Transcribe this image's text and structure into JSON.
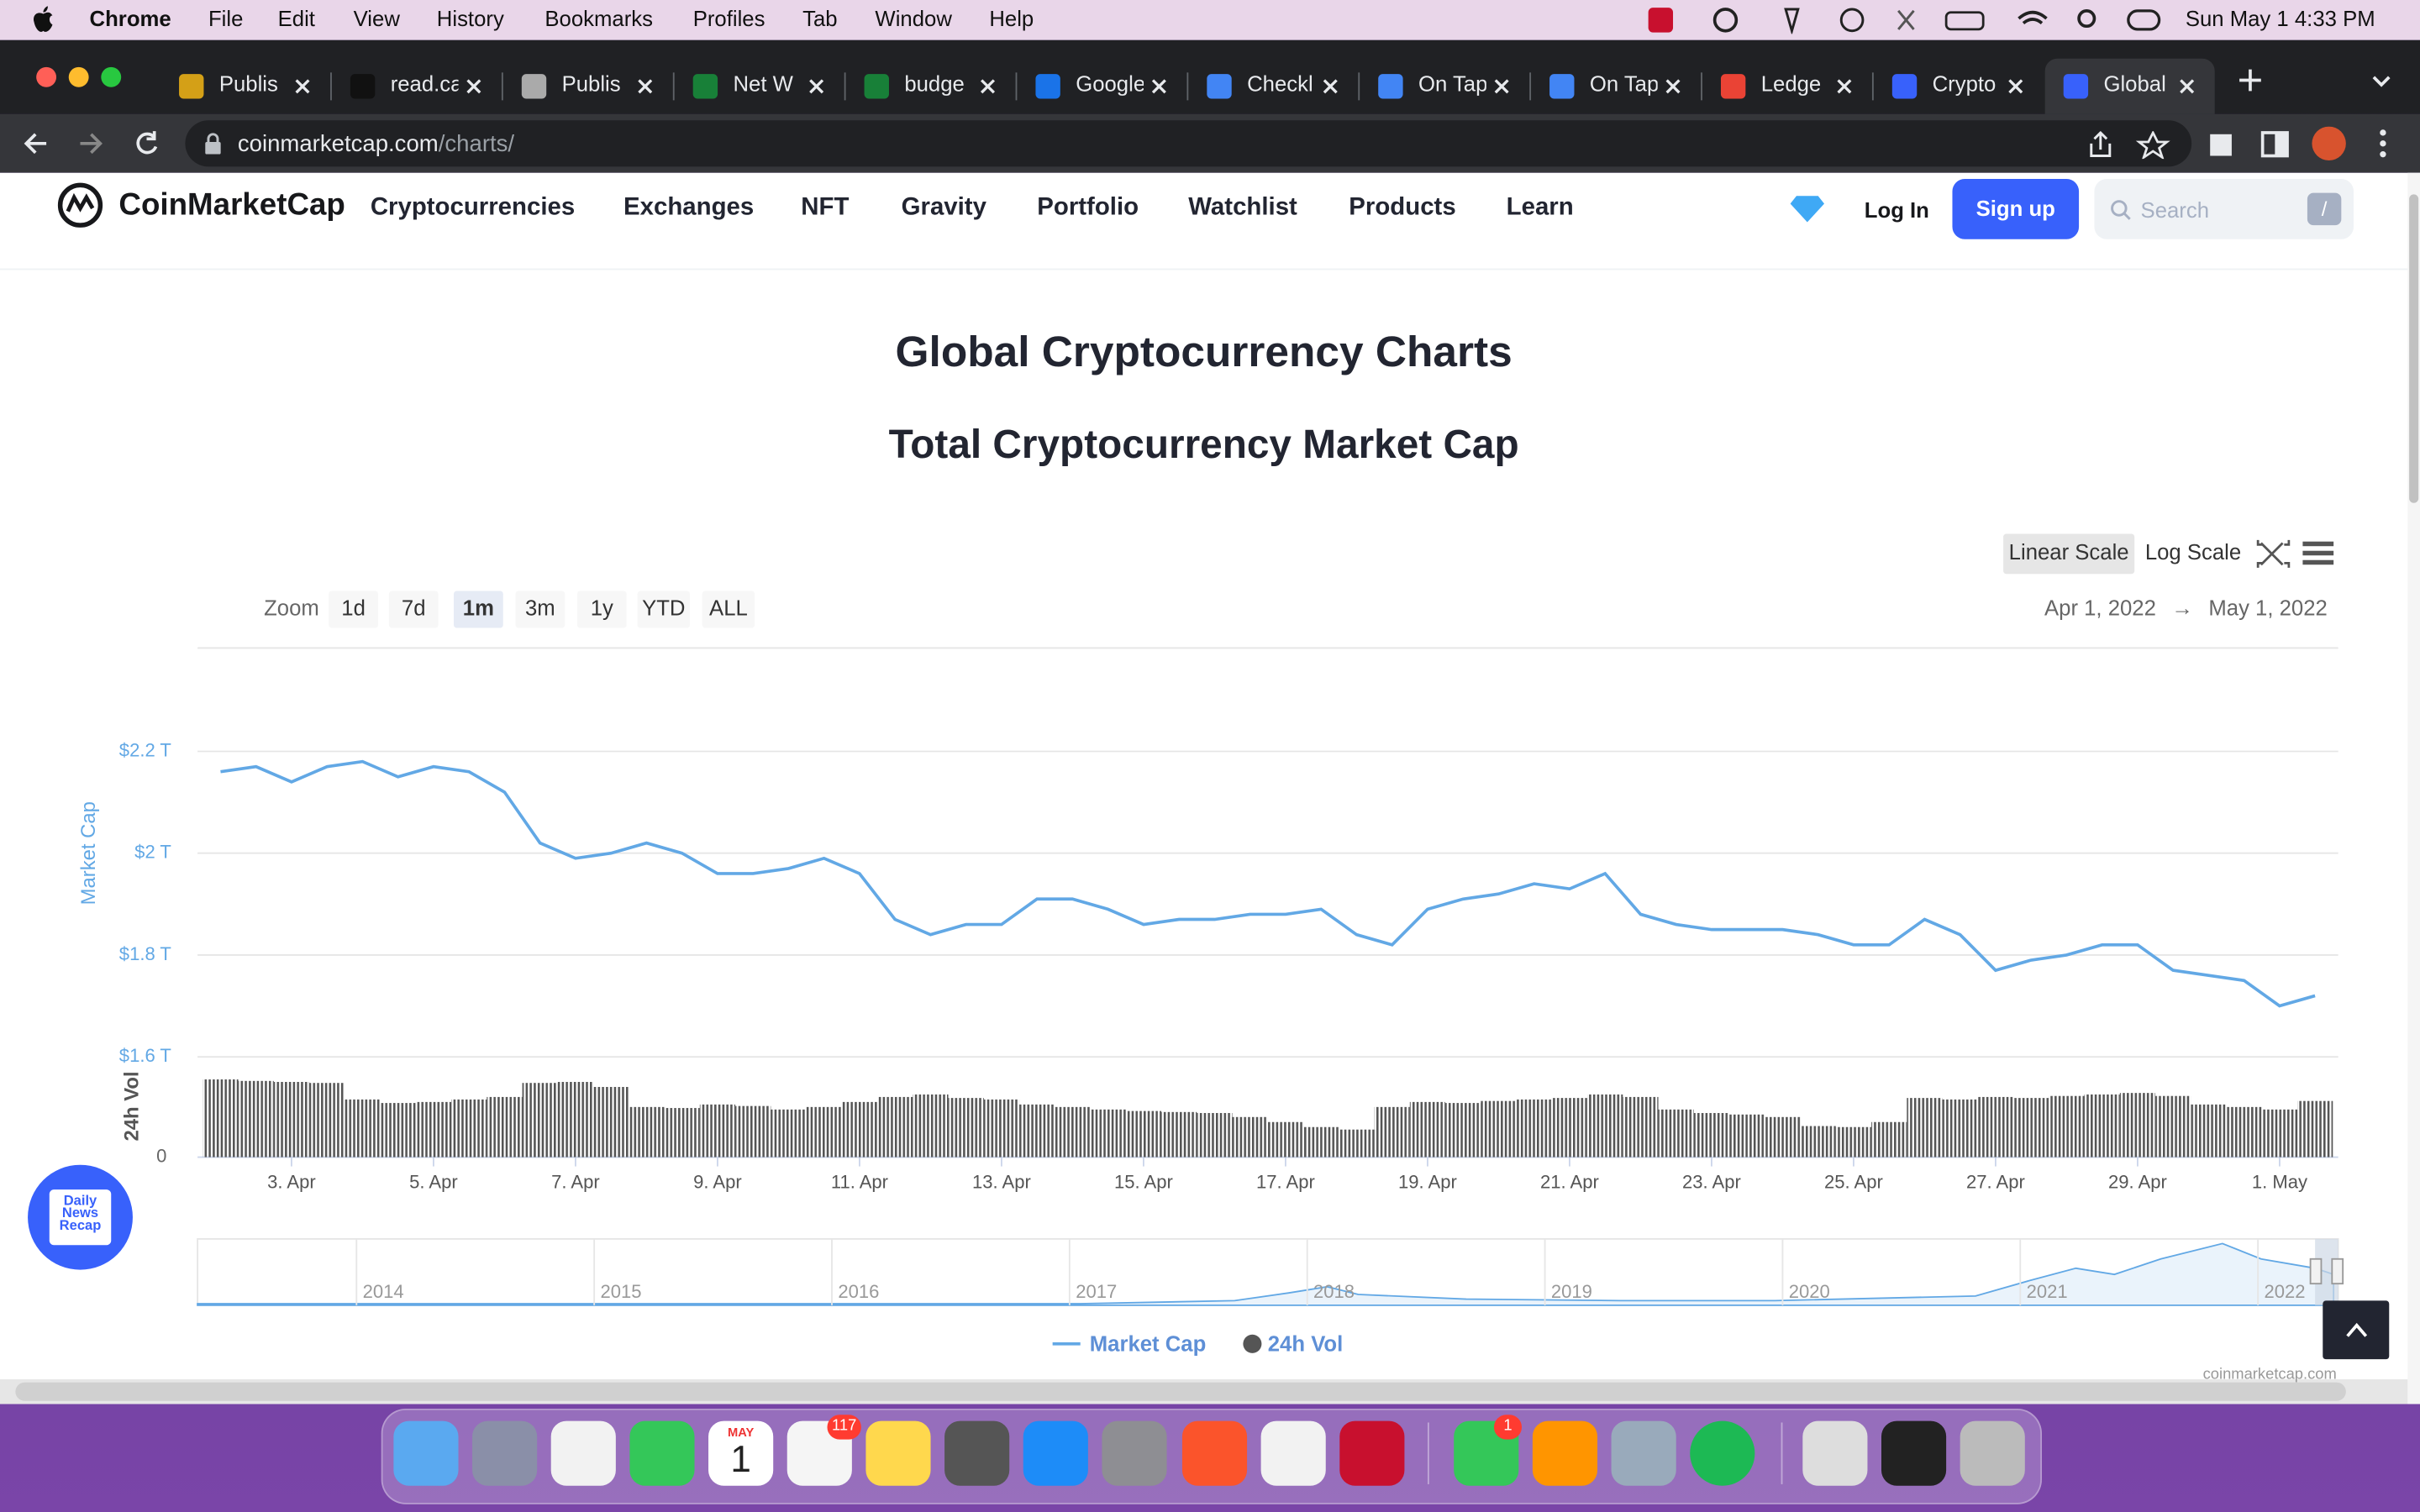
{
  "menu_bar": {
    "app": "Chrome",
    "items": [
      "File",
      "Edit",
      "View",
      "History",
      "Bookmarks",
      "Profiles",
      "Tab",
      "Window",
      "Help"
    ],
    "clock": "Sun May 1  4:33 PM"
  },
  "tabs": [
    "Publis",
    "read.ca",
    "Publis",
    "Net W",
    "budge",
    "Google",
    "Checkl",
    "On Tap",
    "On Tap",
    "Ledge",
    "Crypto",
    "Global"
  ],
  "url": {
    "host": "coinmarketcap.com",
    "path": "/charts/"
  },
  "site_nav": {
    "logo": "CoinMarketCap",
    "items": [
      "Cryptocurrencies",
      "Exchanges",
      "NFT",
      "Gravity",
      "Portfolio",
      "Watchlist",
      "Products",
      "Learn"
    ],
    "login": "Log In",
    "signup": "Sign up",
    "search": "Search",
    "search_key": "/"
  },
  "page": {
    "title": "Global Cryptocurrency Charts"
  },
  "controls": {
    "scales": [
      "Linear Scale",
      "Log Scale"
    ],
    "zoom_label": "Zoom",
    "zoom": [
      "1d",
      "7d",
      "1m",
      "3m",
      "1y",
      "YTD",
      "ALL"
    ],
    "range_from": "Apr 1, 2022",
    "range_arrow": "→",
    "range_to": "May 1, 2022"
  },
  "chart_data": {
    "type": "line",
    "title": "Total Cryptocurrency Market Cap",
    "y_label": "Market Cap",
    "y2_label": "24h Vol",
    "x": [
      2,
      2.5,
      3,
      3.5,
      4,
      4.5,
      5,
      5.5,
      6,
      6.5,
      7,
      7.5,
      8,
      8.5,
      9,
      9.5,
      10,
      10.5,
      11,
      11.5,
      12,
      12.5,
      13,
      13.5,
      14,
      14.5,
      15,
      15.5,
      16,
      16.5,
      17,
      17.5,
      18,
      18.5,
      19,
      19.5,
      20,
      20.5,
      21,
      21.5,
      22,
      22.5,
      23,
      23.5,
      24,
      24.5,
      25,
      25.5,
      26,
      26.5,
      27,
      27.5,
      28,
      28.5,
      29,
      29.5,
      30,
      30.5,
      31,
      31.5
    ],
    "xlim": [
      1.72,
      31.76
    ],
    "xticks": [
      {
        "value": 3,
        "label": "3. Apr"
      },
      {
        "value": 5,
        "label": "5. Apr"
      },
      {
        "value": 7,
        "label": "7. Apr"
      },
      {
        "value": 9,
        "label": "9. Apr"
      },
      {
        "value": 11,
        "label": "11. Apr"
      },
      {
        "value": 13,
        "label": "13. Apr"
      },
      {
        "value": 15,
        "label": "15. Apr"
      },
      {
        "value": 17,
        "label": "17. Apr"
      },
      {
        "value": 19,
        "label": "19. Apr"
      },
      {
        "value": 21,
        "label": "21. Apr"
      },
      {
        "value": 23,
        "label": "23. Apr"
      },
      {
        "value": 25,
        "label": "25. Apr"
      },
      {
        "value": 27,
        "label": "27. Apr"
      },
      {
        "value": 29,
        "label": "29. Apr"
      },
      {
        "value": 31,
        "label": "1. May"
      }
    ],
    "ylim": [
      1.6,
      2.4
    ],
    "yticks": [
      {
        "value": 1.6,
        "label": "$1.6 T"
      },
      {
        "value": 1.8,
        "label": "$1.8 T"
      },
      {
        "value": 2,
        "label": "$2 T"
      },
      {
        "value": 2.2,
        "label": "$2.2 T"
      }
    ],
    "y2lim": [
      0,
      200
    ],
    "y2ticks": [
      0
    ],
    "grid": true,
    "series": [
      {
        "name": "Market Cap",
        "color": "#62a8e5",
        "values": [
          2.16,
          2.17,
          2.14,
          2.17,
          2.18,
          2.15,
          2.17,
          2.16,
          2.12,
          2.02,
          1.99,
          2.0,
          2.02,
          2.0,
          1.96,
          1.96,
          1.97,
          1.99,
          1.96,
          1.87,
          1.84,
          1.86,
          1.86,
          1.91,
          1.91,
          1.89,
          1.86,
          1.87,
          1.87,
          1.88,
          1.88,
          1.89,
          1.84,
          1.82,
          1.89,
          1.91,
          1.92,
          1.94,
          1.93,
          1.96,
          1.88,
          1.86,
          1.85,
          1.85,
          1.85,
          1.84,
          1.82,
          1.82,
          1.87,
          1.84,
          1.77,
          1.79,
          1.8,
          1.82,
          1.82,
          1.77,
          1.76,
          1.75,
          1.7,
          1.72
        ]
      },
      {
        "name": "24h Vol",
        "color": "#555555",
        "type": "bar",
        "axis": "y2",
        "values": [
          155,
          152,
          150,
          148,
          115,
          108,
          110,
          115,
          120,
          148,
          150,
          140,
          100,
          98,
          105,
          102,
          95,
          100,
          110,
          120,
          125,
          118,
          115,
          105,
          100,
          95,
          92,
          90,
          88,
          80,
          70,
          60,
          55,
          100,
          110,
          108,
          112,
          115,
          118,
          125,
          120,
          95,
          88,
          85,
          80,
          62,
          60,
          70,
          118,
          115,
          120,
          118,
          122,
          125,
          128,
          122,
          105,
          100,
          95,
          112
        ]
      }
    ],
    "navigator_labels": [
      "2014",
      "2015",
      "2016",
      "2017",
      "2018",
      "2019",
      "2020",
      "2021",
      "2022"
    ],
    "credit": "coinmarketcap.com"
  },
  "widget": "Daily News Recap",
  "dock": {
    "calendar_month": "MAY",
    "calendar_day": "1",
    "badges": [
      "117",
      "1"
    ]
  }
}
